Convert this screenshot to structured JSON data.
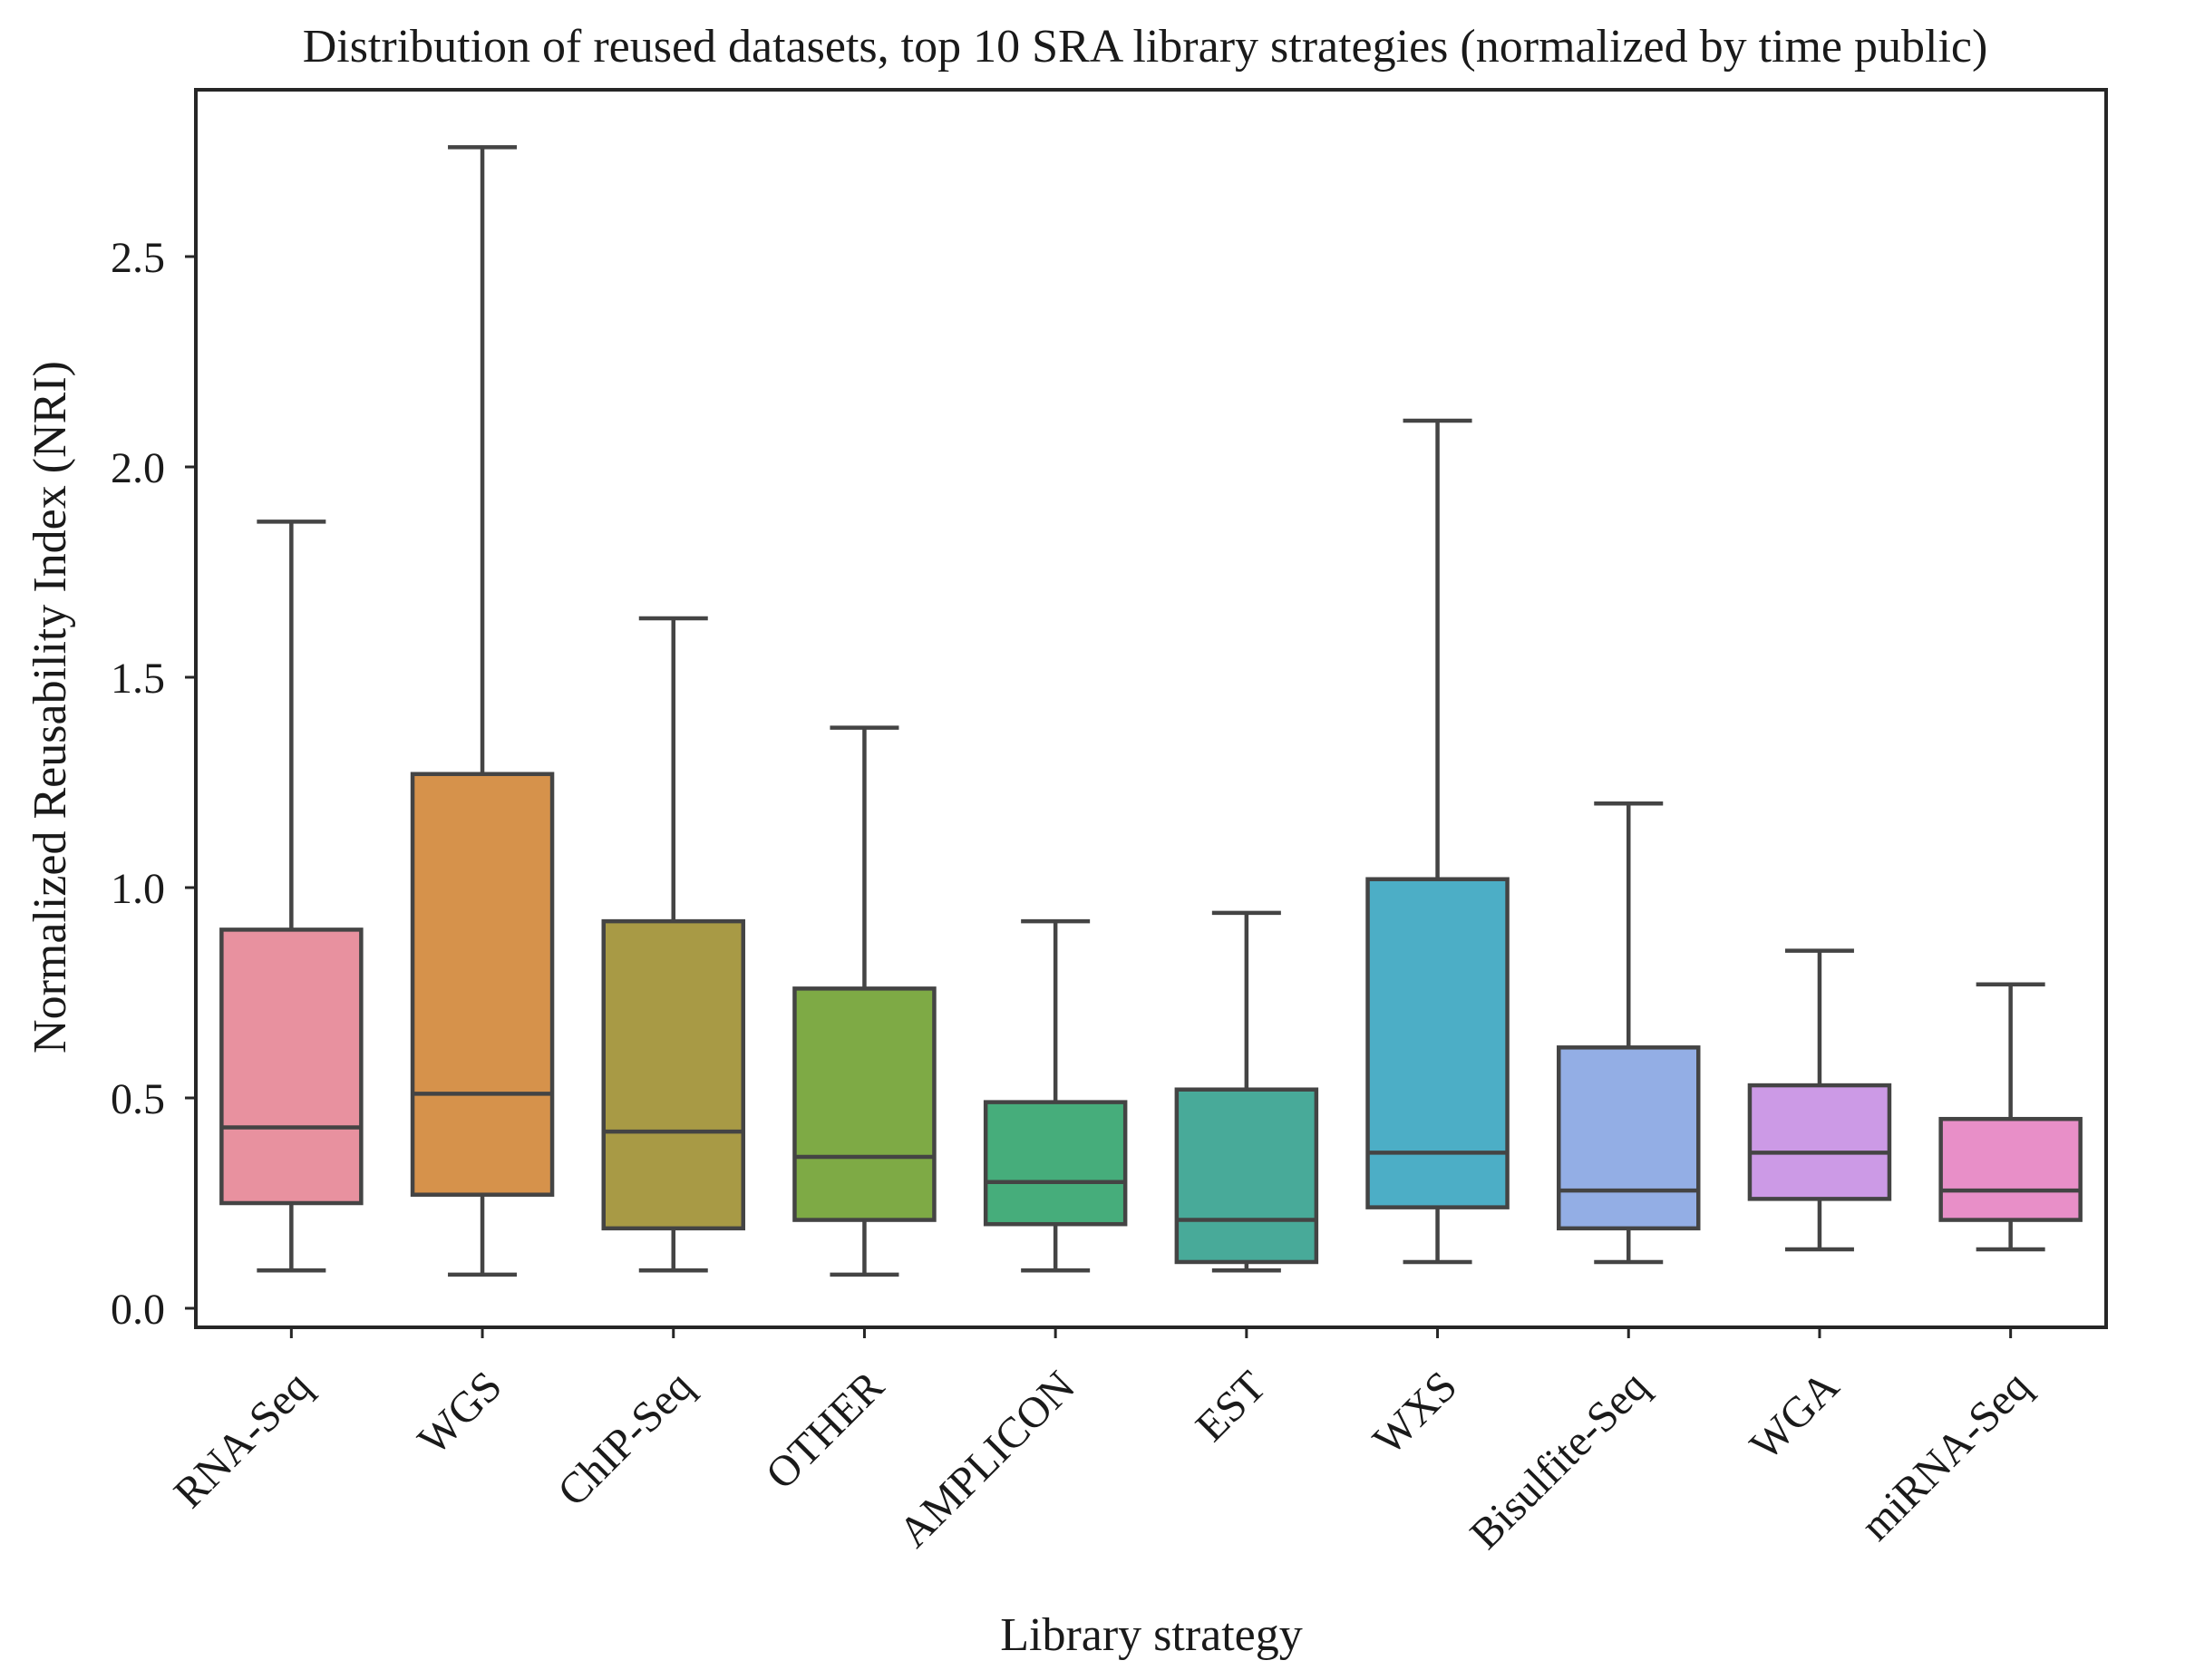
{
  "chart_data": {
    "type": "boxplot",
    "title": "Distribution of reused datasets, top 10 SRA library strategies (normalized by time public)",
    "xlabel": "Library strategy",
    "ylabel": "Normalized Reusability Index (NRI)",
    "ylim": [
      -0.05,
      2.9
    ],
    "yticks": [
      "0.0",
      "0.5",
      "1.0",
      "1.5",
      "2.0",
      "2.5"
    ],
    "grid": false,
    "categories": [
      "RNA-Seq",
      "WGS",
      "ChIP-Seq",
      "OTHER",
      "AMPLICON",
      "EST",
      "WXS",
      "Bisulfite-Seq",
      "WGA",
      "miRNA-Seq"
    ],
    "boxes": [
      {
        "category": "RNA-Seq",
        "whisker_low": 0.09,
        "q1": 0.25,
        "median": 0.43,
        "q3": 0.9,
        "whisker_high": 1.87,
        "color": "#e8919f"
      },
      {
        "category": "WGS",
        "whisker_low": 0.08,
        "q1": 0.27,
        "median": 0.51,
        "q3": 1.27,
        "whisker_high": 2.76,
        "color": "#d6924b"
      },
      {
        "category": "ChIP-Seq",
        "whisker_low": 0.09,
        "q1": 0.19,
        "median": 0.42,
        "q3": 0.92,
        "whisker_high": 1.64,
        "color": "#a89a45"
      },
      {
        "category": "OTHER",
        "whisker_low": 0.08,
        "q1": 0.21,
        "median": 0.36,
        "q3": 0.76,
        "whisker_high": 1.38,
        "color": "#7eaa45"
      },
      {
        "category": "AMPLICON",
        "whisker_low": 0.09,
        "q1": 0.2,
        "median": 0.3,
        "q3": 0.49,
        "whisker_high": 0.92,
        "color": "#46ad7b"
      },
      {
        "category": "EST",
        "whisker_low": 0.09,
        "q1": 0.11,
        "median": 0.21,
        "q3": 0.52,
        "whisker_high": 0.94,
        "color": "#48aa99"
      },
      {
        "category": "WXS",
        "whisker_low": 0.11,
        "q1": 0.24,
        "median": 0.37,
        "q3": 1.02,
        "whisker_high": 2.11,
        "color": "#4caec6"
      },
      {
        "category": "Bisulfite-Seq",
        "whisker_low": 0.11,
        "q1": 0.19,
        "median": 0.28,
        "q3": 0.62,
        "whisker_high": 1.2,
        "color": "#93aee5"
      },
      {
        "category": "WGA",
        "whisker_low": 0.14,
        "q1": 0.26,
        "median": 0.37,
        "q3": 0.53,
        "whisker_high": 0.85,
        "color": "#cc9ae6"
      },
      {
        "category": "miRNA-Seq",
        "whisker_low": 0.14,
        "q1": 0.21,
        "median": 0.28,
        "q3": 0.45,
        "whisker_high": 0.77,
        "color": "#e88fc8"
      }
    ]
  }
}
